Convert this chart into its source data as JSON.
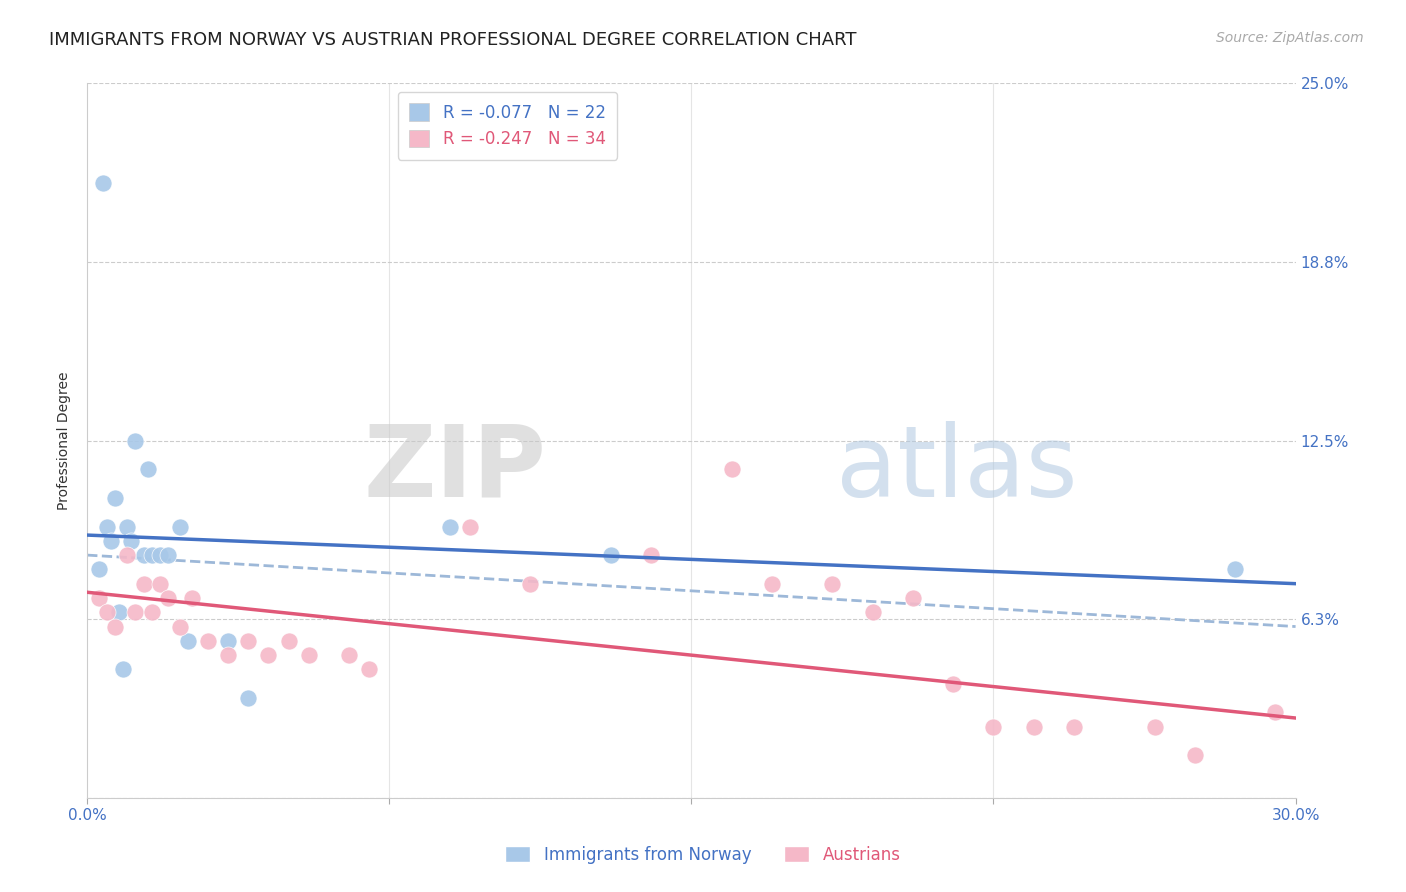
{
  "title": "IMMIGRANTS FROM NORWAY VS AUSTRIAN PROFESSIONAL DEGREE CORRELATION CHART",
  "source": "Source: ZipAtlas.com",
  "ylabel": "Professional Degree",
  "xlim": [
    0.0,
    30.0
  ],
  "ylim": [
    0.0,
    25.0
  ],
  "yticks": [
    0.0,
    6.25,
    12.5,
    18.75,
    25.0
  ],
  "ytick_labels": [
    "",
    "6.3%",
    "12.5%",
    "18.8%",
    "25.0%"
  ],
  "xtick_positions": [
    0.0,
    7.5,
    15.0,
    22.5,
    30.0
  ],
  "xtick_labels": [
    "0.0%",
    "",
    "",
    "",
    "30.0%"
  ],
  "norway_R": -0.077,
  "norway_N": 22,
  "austria_R": -0.247,
  "austria_N": 34,
  "norway_dot_color": "#a8c8e8",
  "austria_dot_color": "#f5b8c8",
  "norway_line_color": "#4472c4",
  "austria_line_color": "#e05878",
  "dashed_line_color": "#9db8d8",
  "background_color": "#ffffff",
  "grid_color": "#cccccc",
  "norway_points_x": [
    0.3,
    0.5,
    0.6,
    0.7,
    0.8,
    1.0,
    1.1,
    1.2,
    1.4,
    1.5,
    1.6,
    1.8,
    2.0,
    2.3,
    2.5,
    3.5,
    4.0,
    9.0,
    13.0,
    0.4,
    0.9,
    28.5
  ],
  "norway_points_y": [
    8.0,
    9.5,
    9.0,
    10.5,
    6.5,
    9.5,
    9.0,
    12.5,
    8.5,
    11.5,
    8.5,
    8.5,
    8.5,
    9.5,
    5.5,
    5.5,
    3.5,
    9.5,
    8.5,
    21.5,
    4.5,
    8.0
  ],
  "austria_points_x": [
    0.3,
    0.5,
    0.7,
    1.0,
    1.2,
    1.4,
    1.6,
    1.8,
    2.0,
    2.3,
    2.6,
    3.0,
    3.5,
    4.0,
    4.5,
    5.0,
    5.5,
    6.5,
    7.0,
    9.5,
    11.0,
    14.0,
    16.0,
    17.0,
    18.5,
    19.5,
    20.5,
    21.5,
    22.5,
    23.5,
    24.5,
    26.5,
    27.5,
    29.5
  ],
  "austria_points_y": [
    7.0,
    6.5,
    6.0,
    8.5,
    6.5,
    7.5,
    6.5,
    7.5,
    7.0,
    6.0,
    7.0,
    5.5,
    5.0,
    5.5,
    5.0,
    5.5,
    5.0,
    5.0,
    4.5,
    9.5,
    7.5,
    8.5,
    11.5,
    7.5,
    7.5,
    6.5,
    7.0,
    4.0,
    2.5,
    2.5,
    2.5,
    2.5,
    1.5,
    3.0
  ],
  "norway_trend_x": [
    0.0,
    30.0
  ],
  "norway_trend_y": [
    9.2,
    7.5
  ],
  "austria_trend_x": [
    0.0,
    30.0
  ],
  "austria_trend_y": [
    7.2,
    2.8
  ],
  "dashed_trend_x": [
    0.0,
    30.0
  ],
  "dashed_trend_y": [
    8.5,
    6.0
  ],
  "watermark_zip": "ZIP",
  "watermark_atlas": "atlas",
  "title_fontsize": 13,
  "axis_label_fontsize": 10,
  "tick_fontsize": 11,
  "legend_fontsize": 12,
  "source_fontsize": 10
}
